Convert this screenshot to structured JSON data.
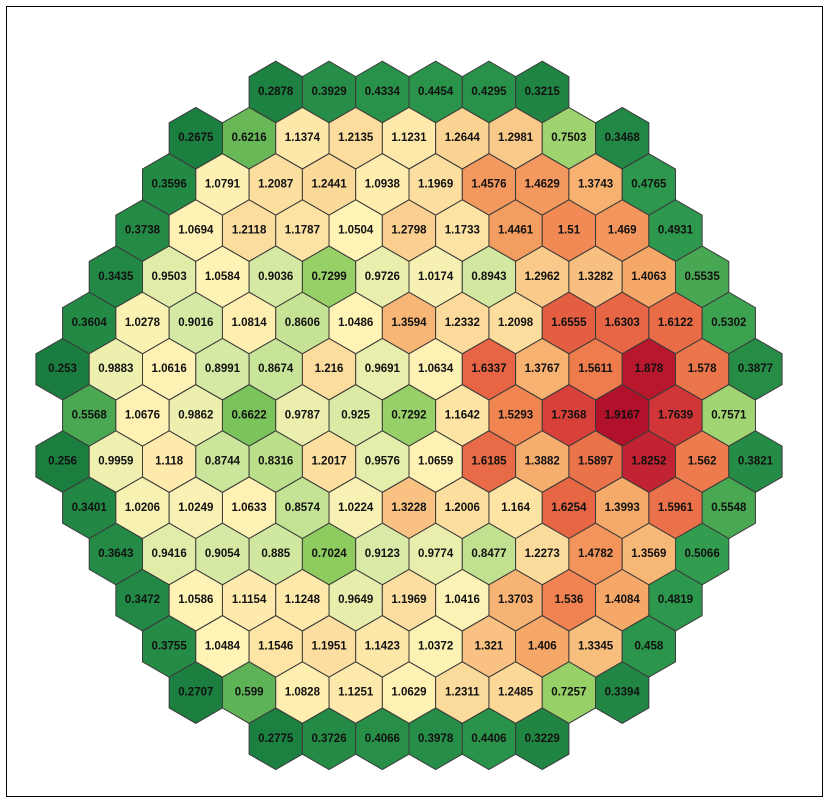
{
  "chart_data": {
    "type": "heatmap",
    "layout": "hexagonal-core-map",
    "title": "",
    "colorscale": {
      "low": "#1a7d3f",
      "mid": "#fff2b4",
      "high": "#b5112a",
      "stops": [
        {
          "value": 0.25,
          "color": "#1a7d3f"
        },
        {
          "value": 0.5,
          "color": "#2f9a4e"
        },
        {
          "value": 0.7,
          "color": "#8dcc5e"
        },
        {
          "value": 0.9,
          "color": "#d4e9a3"
        },
        {
          "value": 1.05,
          "color": "#fff3b6"
        },
        {
          "value": 1.25,
          "color": "#fbd898"
        },
        {
          "value": 1.4,
          "color": "#f6aa6a"
        },
        {
          "value": 1.55,
          "color": "#ef7f4e"
        },
        {
          "value": 1.7,
          "color": "#e0503d"
        },
        {
          "value": 1.8,
          "color": "#c72834"
        },
        {
          "value": 1.92,
          "color": "#b0102a"
        }
      ]
    },
    "rows": [
      [
        "0.2878",
        "0.3929",
        "0.4334",
        "0.4454",
        "0.4295",
        "0.3215"
      ],
      [
        "0.2675",
        "0.6216",
        "1.1374",
        "1.2135",
        "1.1231",
        "1.2644",
        "1.2981",
        "0.7503",
        "0.3468"
      ],
      [
        "0.3596",
        "1.0791",
        "1.2087",
        "1.2441",
        "1.0938",
        "1.1969",
        "1.4576",
        "1.4629",
        "1.3743",
        "0.4765"
      ],
      [
        "0.3738",
        "1.0694",
        "1.2118",
        "1.1787",
        "1.0504",
        "1.2798",
        "1.1733",
        "1.4461",
        "1.51",
        "1.469",
        "0.4931"
      ],
      [
        "0.3435",
        "0.9503",
        "1.0584",
        "0.9036",
        "0.7299",
        "0.9726",
        "1.0174",
        "0.8943",
        "1.2962",
        "1.3282",
        "1.4063",
        "0.5535"
      ],
      [
        "0.3604",
        "1.0278",
        "0.9016",
        "1.0814",
        "0.8606",
        "1.0486",
        "1.3594",
        "1.2332",
        "1.2098",
        "1.6555",
        "1.6303",
        "1.6122",
        "0.5302"
      ],
      [
        "0.253",
        "0.9883",
        "1.0616",
        "0.8991",
        "0.8674",
        "1.216",
        "0.9691",
        "1.0634",
        "1.6337",
        "1.3767",
        "1.5611",
        "1.878",
        "1.578",
        "0.3877"
      ],
      [
        "0.5568",
        "1.0676",
        "0.9862",
        "0.6622",
        "0.9787",
        "0.925",
        "0.7292",
        "1.1642",
        "1.5293",
        "1.7368",
        "1.9167",
        "1.7639",
        "0.7571"
      ],
      [
        "0.256",
        "0.9959",
        "1.118",
        "0.8744",
        "0.8316",
        "1.2017",
        "0.9576",
        "1.0659",
        "1.6185",
        "1.3882",
        "1.5897",
        "1.8252",
        "1.562",
        "0.3821"
      ],
      [
        "0.3401",
        "1.0206",
        "1.0249",
        "1.0633",
        "0.8574",
        "1.0224",
        "1.3228",
        "1.2006",
        "1.164",
        "1.6254",
        "1.3993",
        "1.5961",
        "0.5548"
      ],
      [
        "0.3643",
        "0.9416",
        "0.9054",
        "0.885",
        "0.7024",
        "0.9123",
        "0.9774",
        "0.8477",
        "1.2273",
        "1.4782",
        "1.3569",
        "0.5066"
      ],
      [
        "0.3472",
        "1.0586",
        "1.1154",
        "1.1248",
        "0.9649",
        "1.1969",
        "1.0416",
        "1.3703",
        "1.536",
        "1.4084",
        "0.4819"
      ],
      [
        "0.3755",
        "1.0484",
        "1.1546",
        "1.1951",
        "1.1423",
        "1.0372",
        "1.321",
        "1.406",
        "1.3345",
        "0.458"
      ],
      [
        "0.2707",
        "0.599",
        "1.0828",
        "1.1251",
        "1.0629",
        "1.2311",
        "1.2485",
        "0.7257",
        "0.3394"
      ],
      [
        "0.2775",
        "0.3726",
        "0.4066",
        "0.3978",
        "0.4406",
        "0.3229"
      ]
    ]
  }
}
